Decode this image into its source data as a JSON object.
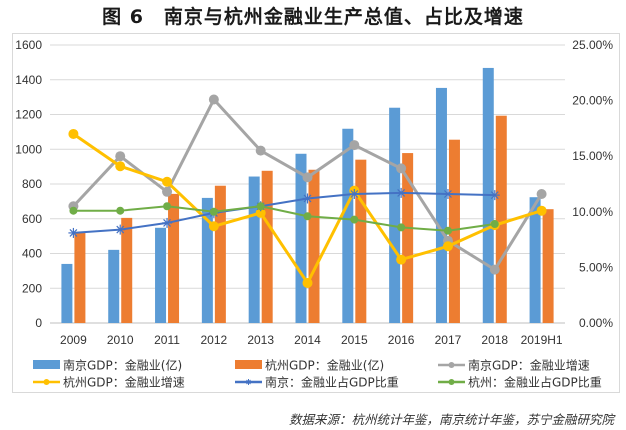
{
  "title": "图 6　南京与杭州金融业生产总值、占比及增速",
  "source": "数据来源：杭州统计年鉴，南京统计年鉴，苏宁金融研究院",
  "chart_data": {
    "type": "bar",
    "title": "图 6　南京与杭州金融业生产总值、占比及增速",
    "xlabel": "",
    "ylabel": "",
    "categories": [
      "2009",
      "2010",
      "2011",
      "2012",
      "2013",
      "2014",
      "2015",
      "2016",
      "2017",
      "2018",
      "2019H1"
    ],
    "ylim": [
      0,
      1600
    ],
    "y_ticks": [
      "0",
      "200",
      "400",
      "600",
      "800",
      "1000",
      "1200",
      "1400",
      "1600"
    ],
    "y2lim": [
      0,
      25
    ],
    "y2_ticks": [
      "0.00%",
      "5.00%",
      "10.00%",
      "15.00%",
      "20.00%",
      "25.00%"
    ],
    "grid": true,
    "legend_position": "bottom",
    "series": [
      {
        "name": "南京GDP：金融业(亿)",
        "type": "bar",
        "axis": "left",
        "color": "#5B9BD5",
        "values": [
          340,
          421,
          548,
          720,
          843,
          974,
          1118,
          1239,
          1353,
          1468,
          724
        ]
      },
      {
        "name": "杭州GDP：金融业(亿)",
        "type": "bar",
        "axis": "left",
        "color": "#ED7D31",
        "values": [
          519,
          605,
          743,
          790,
          876,
          882,
          940,
          978,
          1055,
          1193,
          655
        ]
      },
      {
        "name": "南京GDP：金融业增速",
        "type": "line",
        "axis": "right",
        "marker": "circle",
        "color": "#A5A5A5",
        "values": [
          10.5,
          15.0,
          11.8,
          20.1,
          15.5,
          13.1,
          16.0,
          13.9,
          7.4,
          4.8,
          11.6
        ]
      },
      {
        "name": "杭州GDP：金融业增速",
        "type": "line",
        "axis": "right",
        "marker": "circle",
        "color": "#FFC000",
        "values": [
          17.0,
          14.1,
          12.7,
          8.7,
          9.9,
          3.6,
          11.9,
          5.7,
          6.9,
          8.8,
          10.1
        ]
      },
      {
        "name": "南京：金融业占GDP比重",
        "type": "line",
        "axis": "right",
        "marker": "star",
        "color": "#4472C4",
        "values": [
          8.1,
          8.4,
          9.0,
          9.9,
          10.5,
          11.2,
          11.6,
          11.7,
          11.6,
          11.5,
          null
        ]
      },
      {
        "name": "杭州：金融业占GDP比重",
        "type": "line",
        "axis": "right",
        "marker": "circle",
        "color": "#70AD47",
        "values": [
          10.1,
          10.1,
          10.5,
          10.0,
          10.5,
          9.6,
          9.3,
          8.6,
          8.3,
          8.9,
          null
        ]
      }
    ]
  }
}
